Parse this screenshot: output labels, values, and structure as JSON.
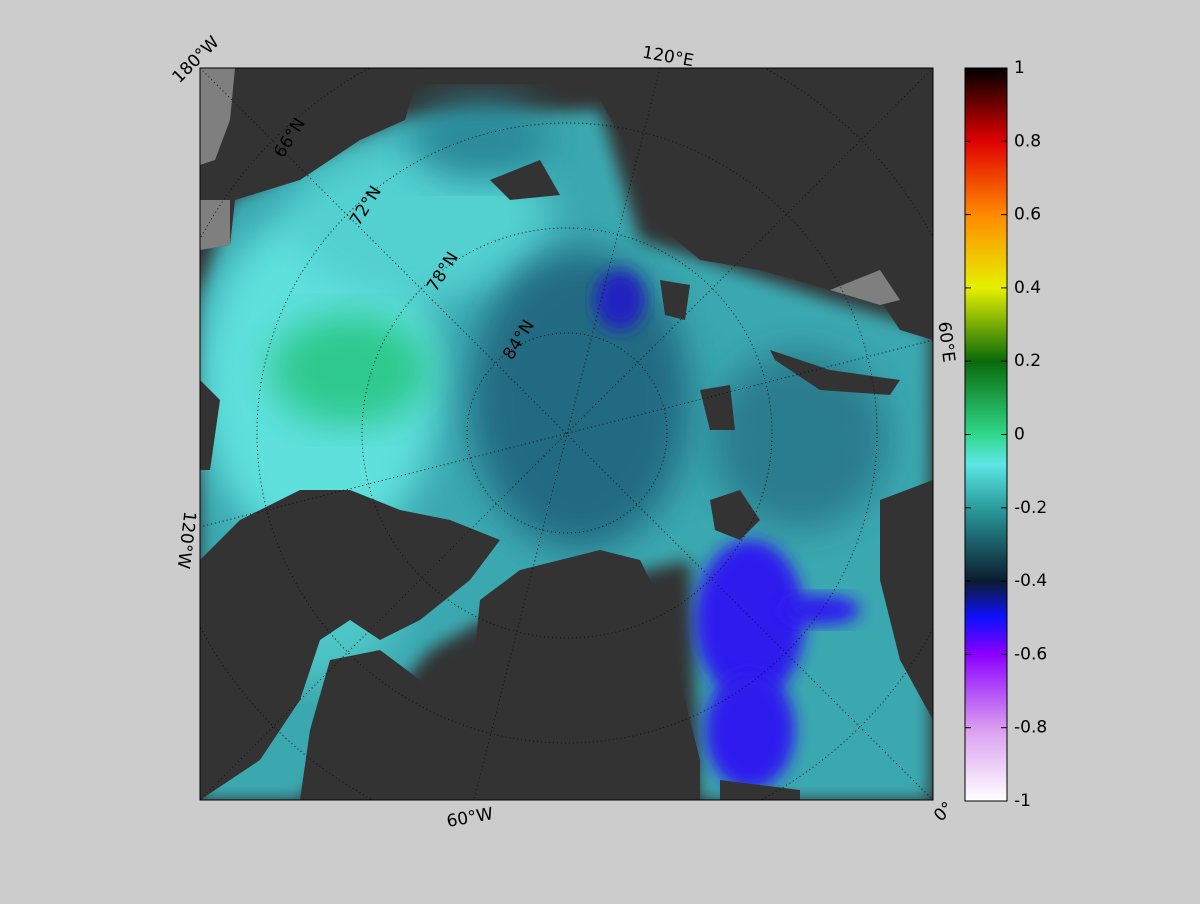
{
  "map": {
    "longitude_labels": [
      "180°W",
      "120°E",
      "60°E",
      "0°",
      "60°W",
      "120°W"
    ],
    "latitude_labels": [
      "66°N",
      "72°N",
      "78°N",
      "84°N"
    ]
  },
  "colorbar": {
    "lim": [
      -1,
      1
    ],
    "ticks": [
      1,
      0.8,
      0.6,
      0.4,
      0.2,
      0,
      -0.2,
      -0.4,
      -0.6,
      -0.8,
      -1
    ]
  }
}
